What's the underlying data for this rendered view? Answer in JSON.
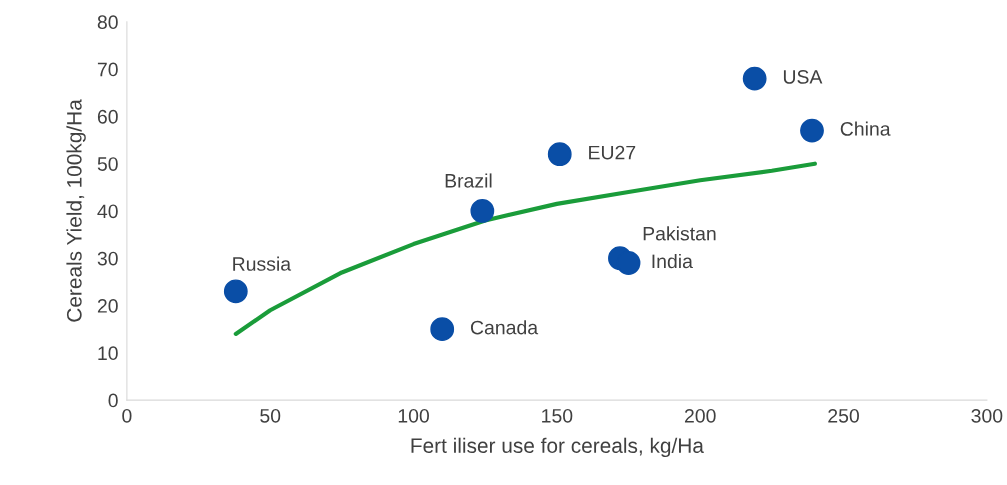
{
  "chart_data": {
    "type": "scatter",
    "xlabel": "Fert iliser use for cereals, kg/Ha",
    "ylabel": "Cereals Yield, 100kg/Ha",
    "xlim": [
      0,
      300
    ],
    "xticks": [
      0,
      50,
      100,
      150,
      200,
      250,
      300
    ],
    "ylim": [
      0,
      80
    ],
    "yticks": [
      0,
      10,
      20,
      30,
      40,
      50,
      60,
      70,
      80
    ],
    "grid": false,
    "legend": false,
    "series": [
      {
        "marker": "circle",
        "color": "#0a4ea6",
        "x": [
          38,
          110,
          124,
          151,
          172,
          175,
          219,
          239
        ],
        "values": [
          23,
          15,
          40,
          52,
          30,
          29,
          68,
          57
        ]
      },
      {
        "type": "line",
        "color": "#1a9c3a",
        "line_style": "solid",
        "x": [
          38,
          50,
          75,
          100,
          125,
          150,
          175,
          200,
          225,
          240
        ],
        "values": [
          14,
          19,
          27,
          33,
          38,
          41.5,
          44,
          46.5,
          48.5,
          50
        ]
      }
    ],
    "annotations": [
      {
        "text": "Russia",
        "x": 38,
        "y": 23
      },
      {
        "text": "Canada",
        "x": 110,
        "y": 15
      },
      {
        "text": "Brazil",
        "x": 124,
        "y": 40
      },
      {
        "text": "EU27",
        "x": 151,
        "y": 52
      },
      {
        "text": "Pakistan",
        "x": 172,
        "y": 30
      },
      {
        "text": "India",
        "x": 175,
        "y": 29
      },
      {
        "text": "USA",
        "x": 219,
        "y": 68
      },
      {
        "text": "China",
        "x": 239,
        "y": 57
      }
    ]
  }
}
